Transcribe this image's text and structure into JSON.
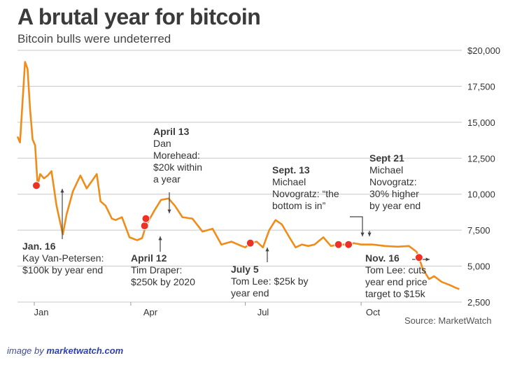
{
  "title": "A brutal year for bitcoin",
  "subtitle": "Bitcoin bulls were undeterred",
  "source": "Source: MarketWatch",
  "credit": {
    "prefix": "image by",
    "site": "marketwatch.com"
  },
  "colors": {
    "line": "#f08c1a",
    "marker": "#ee3124",
    "grid": "#c8c8c8",
    "text": "#333333",
    "credit": "#3f4a9e"
  },
  "chart_data": {
    "type": "line",
    "title": "A brutal year for bitcoin",
    "subtitle": "Bitcoin bulls were undeterred",
    "xlabel": "",
    "ylabel": "",
    "ylim": [
      2500,
      20000
    ],
    "y_axis_side": "right",
    "grid": "horizontal",
    "x_ticks": [
      "Jan",
      "Apr",
      "Jul",
      "Oct"
    ],
    "y_ticks": [
      "$20,000",
      "17,500",
      "15,000",
      "12,500",
      "10,000",
      "7,500",
      "5,000",
      "2,500"
    ],
    "series": [
      {
        "x": [
          "2018-01-01",
          "2018-01-03",
          "2018-01-05",
          "2018-01-07",
          "2018-01-09",
          "2018-01-11",
          "2018-01-13",
          "2018-01-15",
          "2018-01-17",
          "2018-01-19",
          "2018-01-22",
          "2018-01-25",
          "2018-01-28",
          "2018-02-01",
          "2018-02-06",
          "2018-02-09",
          "2018-02-14",
          "2018-02-20",
          "2018-02-25",
          "2018-03-01",
          "2018-03-05",
          "2018-03-08",
          "2018-03-12",
          "2018-03-17",
          "2018-03-20",
          "2018-03-25",
          "2018-03-31",
          "2018-04-06",
          "2018-04-10",
          "2018-04-13",
          "2018-04-20",
          "2018-04-25",
          "2018-05-01",
          "2018-05-06",
          "2018-05-12",
          "2018-05-20",
          "2018-05-28",
          "2018-06-05",
          "2018-06-12",
          "2018-06-20",
          "2018-06-28",
          "2018-07-01",
          "2018-07-05",
          "2018-07-10",
          "2018-07-15",
          "2018-07-20",
          "2018-07-25",
          "2018-07-30",
          "2018-08-05",
          "2018-08-10",
          "2018-08-15",
          "2018-08-20",
          "2018-08-25",
          "2018-09-01",
          "2018-09-07",
          "2018-09-13",
          "2018-09-18",
          "2018-09-21",
          "2018-09-25",
          "2018-10-01",
          "2018-10-10",
          "2018-10-20",
          "2018-10-30",
          "2018-11-08",
          "2018-11-14",
          "2018-11-16",
          "2018-11-19",
          "2018-11-24",
          "2018-11-28",
          "2018-12-04",
          "2018-12-10",
          "2018-12-15",
          "2018-12-18"
        ],
        "y": [
          14000,
          13600,
          16400,
          19200,
          18700,
          15900,
          13800,
          13400,
          10600,
          11400,
          11100,
          11300,
          11600,
          9200,
          7200,
          8600,
          10200,
          11300,
          10400,
          10900,
          11400,
          9500,
          9200,
          8300,
          8200,
          8400,
          7000,
          6800,
          6950,
          7800,
          8900,
          9600,
          9700,
          9200,
          8400,
          8300,
          7400,
          7600,
          6500,
          6700,
          6400,
          6300,
          6600,
          6700,
          6300,
          7500,
          8200,
          7900,
          7000,
          6300,
          6500,
          6400,
          6500,
          7000,
          6400,
          6500,
          6500,
          6500,
          6600,
          6500,
          6500,
          6400,
          6350,
          6400,
          6000,
          5600,
          4800,
          4100,
          4300,
          3900,
          3700,
          3500,
          3400
        ]
      }
    ],
    "annotations": [
      {
        "date": "2018-01-16",
        "value": 10600,
        "label": "Jan. 16",
        "text": [
          "Kay Van-Petersen:",
          "$100k by year end"
        ]
      },
      {
        "date": "2018-04-12",
        "value": 7800,
        "label": "April 12",
        "text": [
          "Tim Draper:",
          "$250k by 2020"
        ]
      },
      {
        "date": "2018-04-13",
        "value": 8300,
        "label": "April 13",
        "text": [
          "Dan",
          "Morehead:",
          "$20k within",
          "a year"
        ]
      },
      {
        "date": "2018-07-05",
        "value": 6600,
        "label": "July 5",
        "text": [
          "Tom Lee: $25k by",
          "year end"
        ]
      },
      {
        "date": "2018-09-13",
        "value": 6500,
        "label": "Sept. 13",
        "text": [
          "Michael",
          "Novogratz: “the",
          "bottom is in”"
        ]
      },
      {
        "date": "2018-09-21",
        "value": 6500,
        "label": "Sept 21",
        "text": [
          "Michael",
          "Novogratz:",
          "30% higher",
          "by year end"
        ]
      },
      {
        "date": "2018-11-16",
        "value": 5600,
        "label": "Nov. 16",
        "text": [
          "Tom Lee: cuts",
          "year end price",
          "target to $15k"
        ]
      }
    ]
  }
}
